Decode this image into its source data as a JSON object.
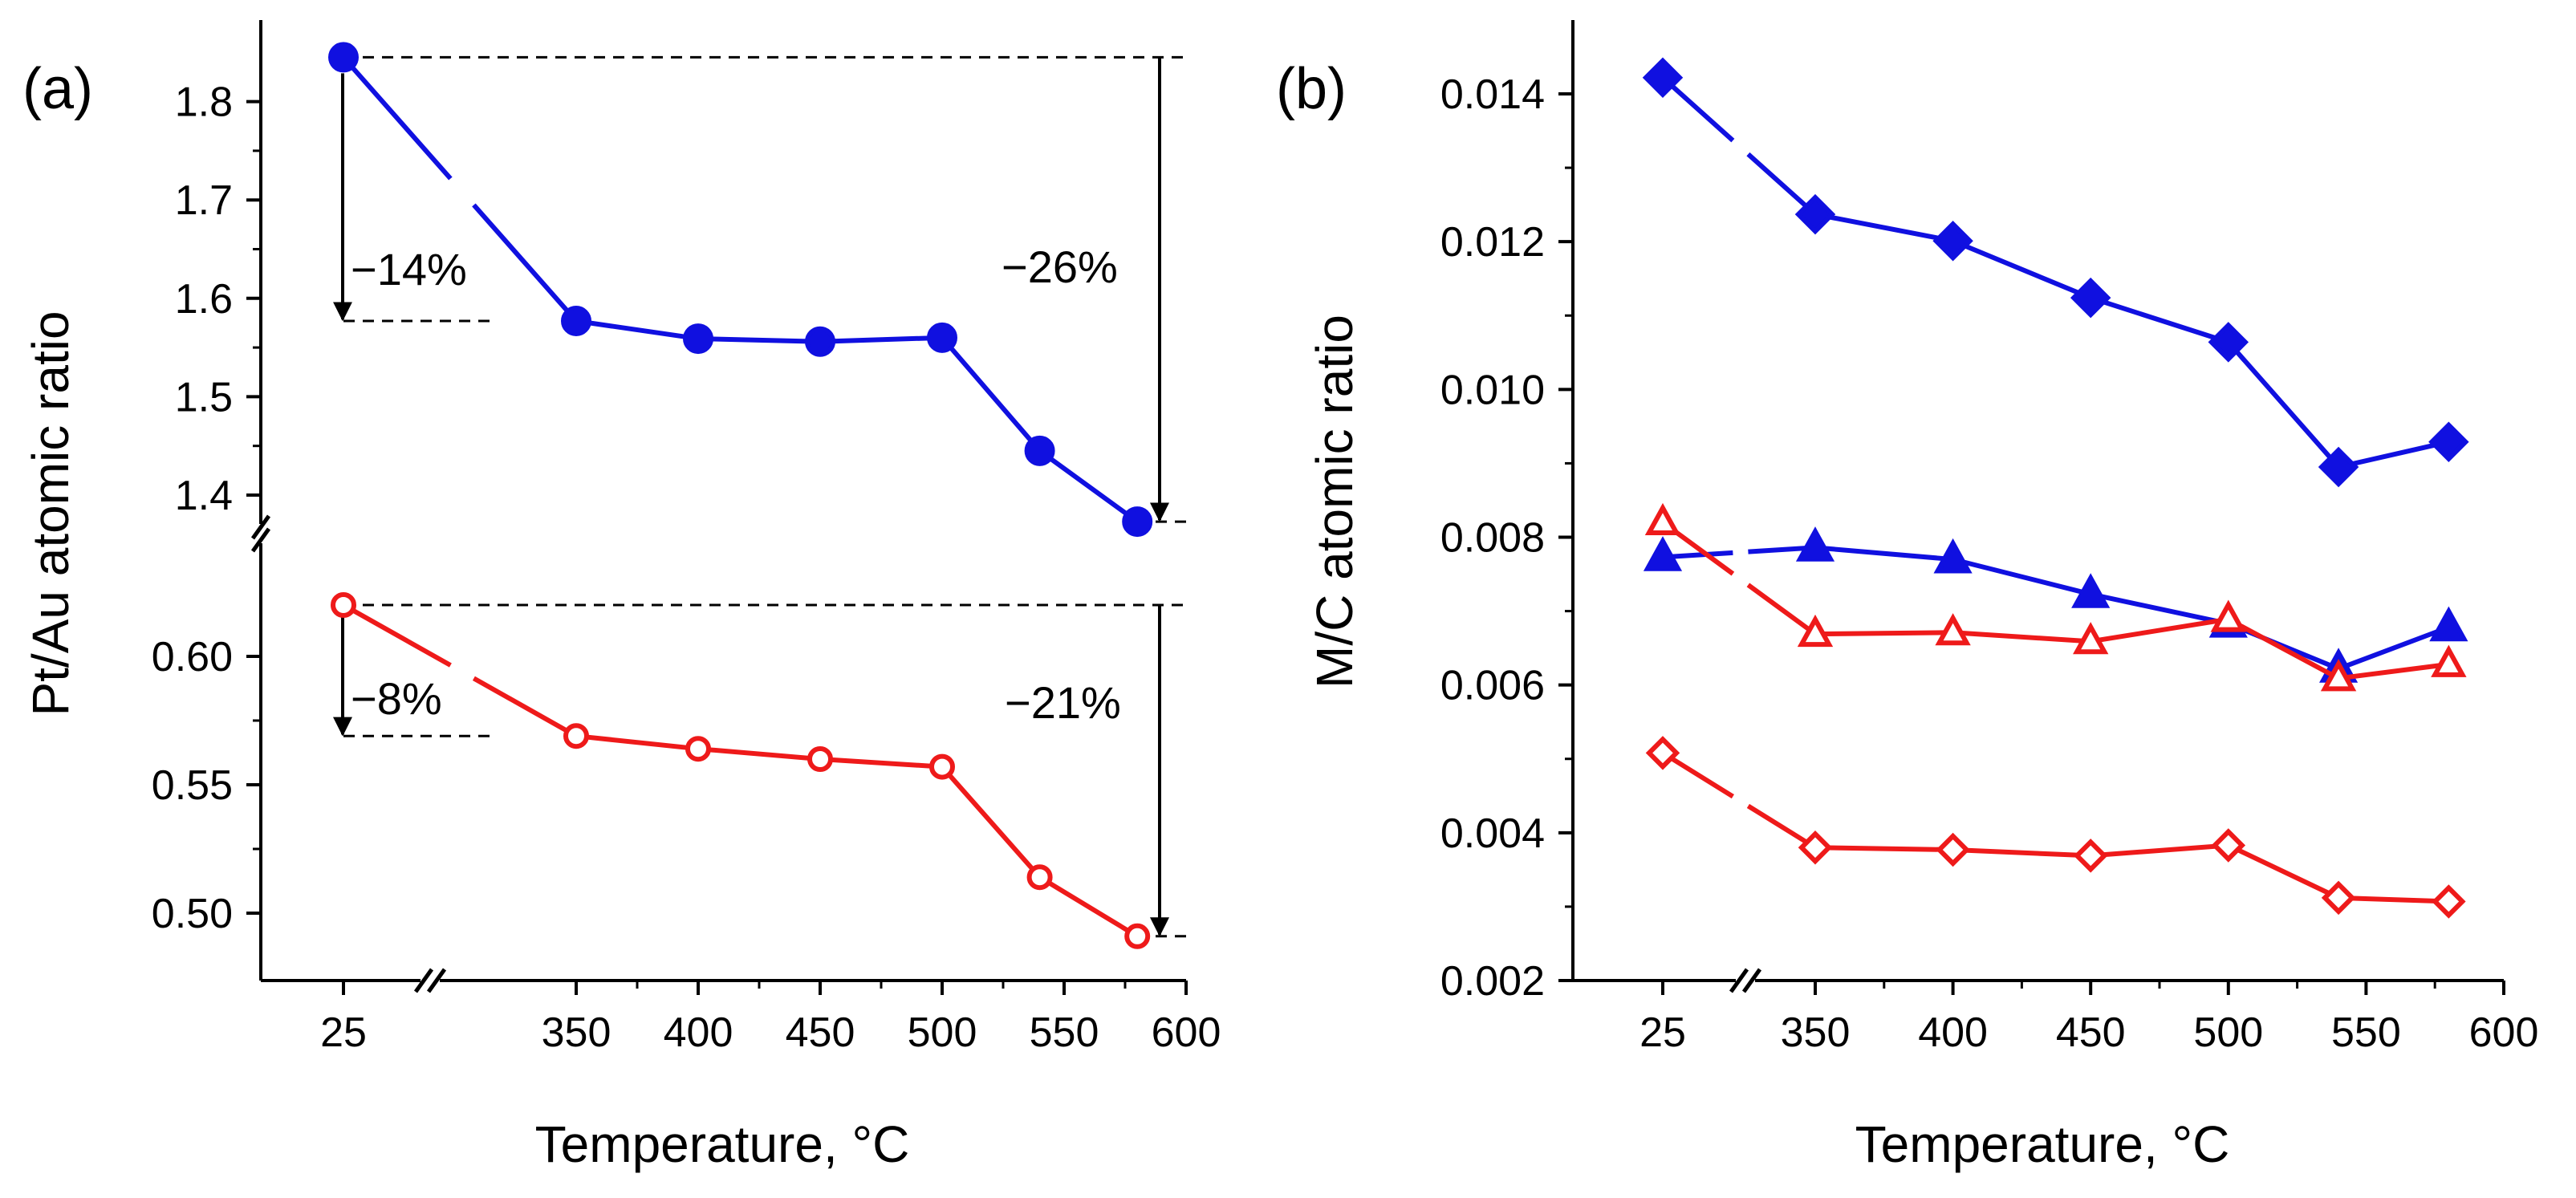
{
  "colors": {
    "blue": "#1010e0",
    "red": "#ee1a1a",
    "axis": "#000000"
  },
  "chart_data": [
    {
      "panel": "(a)",
      "type": "line",
      "xlabel": "Temperature, °C",
      "ylabel": "Pt/Au atomic ratio",
      "x_break_after": 25,
      "y_break": [
        0.63,
        1.35
      ],
      "x": [
        25,
        350,
        400,
        450,
        500,
        540,
        580
      ],
      "x_ticks": [
        "25",
        "350",
        "400",
        "450",
        "500",
        "550",
        "600"
      ],
      "y_ticks_upper": [
        "1.4",
        "1.5",
        "1.6",
        "1.7",
        "1.8"
      ],
      "y_ticks_lower": [
        "0.50",
        "0.55",
        "0.60"
      ],
      "series": [
        {
          "name": "upper",
          "color": "blue",
          "marker": "circle-filled",
          "values": [
            1.845,
            1.577,
            1.559,
            1.556,
            1.56,
            1.445,
            1.373
          ]
        },
        {
          "name": "lower",
          "color": "red",
          "marker": "circle-open",
          "values": [
            0.62,
            0.569,
            0.564,
            0.56,
            0.557,
            0.514,
            0.491
          ]
        }
      ],
      "annotations": [
        "−14%",
        "−26%",
        "−8%",
        "−21%"
      ]
    },
    {
      "panel": "(b)",
      "type": "line",
      "xlabel": "Temperature, °C",
      "ylabel": "M/C atomic ratio",
      "x_break_after": 25,
      "ylim": [
        0.002,
        0.015
      ],
      "x": [
        25,
        350,
        400,
        450,
        500,
        540,
        580
      ],
      "x_ticks": [
        "25",
        "350",
        "400",
        "450",
        "500",
        "550",
        "600"
      ],
      "y_ticks": [
        "0.002",
        "0.004",
        "0.006",
        "0.008",
        "0.010",
        "0.012",
        "0.014"
      ],
      "series": [
        {
          "name": "blue-diamond",
          "color": "blue",
          "marker": "diamond-filled",
          "values": [
            0.01422,
            0.01237,
            0.01201,
            0.01124,
            0.01064,
            0.00895,
            0.00929
          ]
        },
        {
          "name": "blue-triangle",
          "color": "blue",
          "marker": "triangle-filled",
          "values": [
            0.00773,
            0.00786,
            0.0077,
            0.00723,
            0.00683,
            0.00622,
            0.00678
          ]
        },
        {
          "name": "red-triangle",
          "color": "red",
          "marker": "triangle-open",
          "values": [
            0.0082,
            0.00669,
            0.00671,
            0.00659,
            0.00689,
            0.00609,
            0.00628
          ]
        },
        {
          "name": "red-diamond",
          "color": "red",
          "marker": "diamond-open",
          "values": [
            0.00508,
            0.0038,
            0.00377,
            0.00369,
            0.00383,
            0.00312,
            0.00307
          ]
        }
      ]
    }
  ]
}
